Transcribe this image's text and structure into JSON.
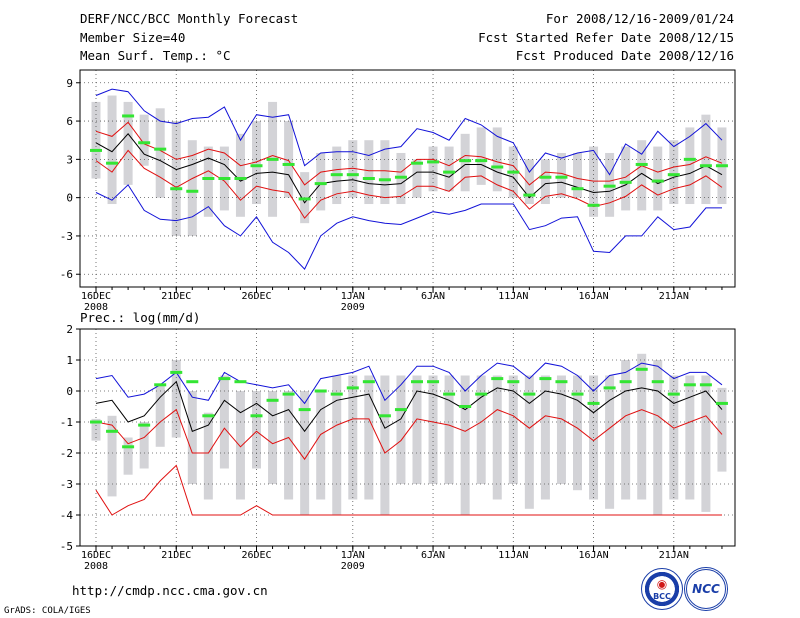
{
  "header": {
    "title": "DERF/NCC/BCC Monthly Forecast",
    "member_size": "Member Size=40",
    "variable": "Mean Surf. Temp.: °C",
    "period": "For 2008/12/16-2009/01/24",
    "refer_date": "Fcst Started Refer Date 2008/12/15",
    "produced_date": "Fcst Produced Date 2008/12/16"
  },
  "footer": {
    "url": "http://cmdp.ncc.cma.gov.cn",
    "credit": "GrADS: COLA/IGES",
    "logo_bcc": "BCC",
    "logo_ncc": "NCC"
  },
  "chart_data": [
    {
      "type": "line",
      "title": "Mean Surf. Temp.: °C",
      "ylim": [
        -7,
        10
      ],
      "yticks": [
        -6,
        -3,
        0,
        3,
        6,
        9
      ],
      "grid": true,
      "x_labels": [
        {
          "day": 0,
          "label": "16DEC",
          "sub": "2008"
        },
        {
          "day": 5,
          "label": "21DEC",
          "sub": ""
        },
        {
          "day": 10,
          "label": "26DEC",
          "sub": ""
        },
        {
          "day": 16,
          "label": "1JAN",
          "sub": "2009"
        },
        {
          "day": 21,
          "label": "6JAN",
          "sub": ""
        },
        {
          "day": 26,
          "label": "11JAN",
          "sub": ""
        },
        {
          "day": 31,
          "label": "16JAN",
          "sub": ""
        },
        {
          "day": 36,
          "label": "21JAN",
          "sub": ""
        }
      ],
      "box_low": [
        1.5,
        -0.5,
        1.0,
        2.5,
        0.0,
        -3.0,
        -3.0,
        -1.5,
        -1.0,
        -1.5,
        -0.5,
        -1.5,
        0.0,
        -2.0,
        -1.0,
        -0.5,
        0.0,
        -0.5,
        -0.5,
        -0.5,
        0.0,
        0.5,
        0.5,
        0.5,
        1.0,
        0.5,
        0.0,
        -0.5,
        -0.5,
        0.0,
        0.0,
        -1.5,
        -1.5,
        -1.0,
        -1.0,
        -1.0,
        -0.5,
        -0.5,
        -0.5,
        -0.5
      ],
      "box_high": [
        7.5,
        8.0,
        7.5,
        6.5,
        7.0,
        6.0,
        4.5,
        4.0,
        4.0,
        5.0,
        6.0,
        7.5,
        6.0,
        2.0,
        3.5,
        4.0,
        4.5,
        4.5,
        4.5,
        3.5,
        3.0,
        4.0,
        4.0,
        5.0,
        5.5,
        5.5,
        4.0,
        3.0,
        3.0,
        3.5,
        3.5,
        4.0,
        3.5,
        4.0,
        4.5,
        4.0,
        4.5,
        5.5,
        6.5,
        5.5
      ],
      "observed": [
        3.7,
        2.7,
        6.4,
        4.3,
        3.8,
        0.7,
        0.5,
        1.5,
        1.5,
        1.5,
        2.5,
        3.0,
        2.6,
        -0.1,
        1.1,
        1.8,
        1.8,
        1.5,
        1.4,
        1.6,
        2.7,
        2.8,
        2.0,
        2.9,
        2.9,
        2.4,
        2.0,
        0.2,
        1.6,
        1.6,
        0.7,
        -0.6,
        0.9,
        1.2,
        2.6,
        1.3,
        1.8,
        3.0,
        2.5,
        2.5
      ],
      "series": [
        {
          "name": "ensemble max",
          "color": "#1212d8",
          "values": [
            0.4,
            -0.2,
            1.0,
            -1.0,
            -1.7,
            -1.8,
            -1.5,
            -0.7,
            -2.2,
            -3.0,
            -1.5,
            -3.5,
            -4.3,
            -5.6,
            -3.0,
            -2.0,
            -1.5,
            -1.8,
            -2.0,
            -2.1,
            -1.6,
            -1.1,
            -1.3,
            -1.0,
            -0.5,
            -0.5,
            -0.5,
            -2.5,
            -2.2,
            -1.6,
            -1.5,
            -4.2,
            -4.3,
            -3.0,
            -3.0,
            -1.5,
            -2.5,
            -2.3,
            -0.8,
            -0.8
          ]
        },
        {
          "name": "ensemble min",
          "color": "#1212d8",
          "values": [
            8.0,
            8.5,
            8.3,
            6.8,
            6.0,
            5.8,
            6.2,
            6.3,
            7.1,
            4.5,
            6.5,
            6.3,
            6.5,
            2.5,
            3.5,
            3.6,
            3.6,
            3.3,
            3.8,
            4.0,
            5.4,
            5.1,
            4.5,
            6.2,
            5.7,
            4.8,
            4.3,
            2.0,
            3.5,
            3.1,
            3.5,
            3.7,
            1.8,
            4.2,
            3.4,
            5.2,
            4.0,
            4.8,
            5.8,
            4.5
          ]
        },
        {
          "name": "mean + 1 std",
          "color": "#e01010",
          "values": [
            5.2,
            4.8,
            5.9,
            4.2,
            3.7,
            3.0,
            3.3,
            3.8,
            3.5,
            2.5,
            2.8,
            3.3,
            2.9,
            1.0,
            2.0,
            2.2,
            2.3,
            2.1,
            2.1,
            2.0,
            3.0,
            3.0,
            2.5,
            3.3,
            3.2,
            2.8,
            2.5,
            1.0,
            2.0,
            1.9,
            1.5,
            1.3,
            1.3,
            1.6,
            2.5,
            2.0,
            2.4,
            2.6,
            3.2,
            2.7
          ]
        },
        {
          "name": "ensemble mean",
          "color": "#000000",
          "values": [
            4.3,
            3.6,
            5.0,
            3.4,
            2.9,
            2.2,
            2.6,
            3.1,
            2.6,
            1.3,
            1.9,
            2.0,
            1.8,
            -0.4,
            1.1,
            1.3,
            1.4,
            1.1,
            1.0,
            1.1,
            2.0,
            2.0,
            1.6,
            2.6,
            2.6,
            2.0,
            1.6,
            0.0,
            1.1,
            1.2,
            0.8,
            0.4,
            0.5,
            1.0,
            1.9,
            1.1,
            1.6,
            1.9,
            2.5,
            1.8
          ]
        },
        {
          "name": "mean - 1 std",
          "color": "#e01010",
          "values": [
            2.9,
            2.0,
            3.7,
            2.3,
            1.6,
            0.8,
            1.5,
            2.1,
            1.3,
            -0.2,
            0.9,
            0.6,
            0.4,
            -1.6,
            -0.2,
            0.3,
            0.5,
            0.2,
            0.0,
            0.1,
            0.9,
            0.9,
            0.5,
            1.6,
            1.7,
            1.0,
            0.5,
            -0.9,
            0.1,
            0.3,
            -0.1,
            -0.7,
            -0.4,
            0.1,
            1.0,
            0.2,
            0.7,
            1.0,
            1.7,
            0.8
          ]
        }
      ]
    },
    {
      "type": "line",
      "title": "Prec.: log(mm/d)",
      "ylim": [
        -5,
        2
      ],
      "yticks": [
        -5,
        -4,
        -3,
        -2,
        -1,
        0,
        1,
        2
      ],
      "grid": true,
      "x_labels": [
        {
          "day": 0,
          "label": "16DEC",
          "sub": "2008"
        },
        {
          "day": 5,
          "label": "21DEC",
          "sub": ""
        },
        {
          "day": 10,
          "label": "26DEC",
          "sub": ""
        },
        {
          "day": 16,
          "label": "1JAN",
          "sub": "2009"
        },
        {
          "day": 21,
          "label": "6JAN",
          "sub": ""
        },
        {
          "day": 26,
          "label": "11JAN",
          "sub": ""
        },
        {
          "day": 31,
          "label": "16JAN",
          "sub": ""
        },
        {
          "day": 36,
          "label": "21JAN",
          "sub": ""
        }
      ],
      "box_low": [
        -1.6,
        -3.4,
        -2.7,
        -2.5,
        -1.8,
        -1.5,
        -3.0,
        -3.5,
        -2.5,
        -3.5,
        -2.5,
        -3.0,
        -3.5,
        -4.0,
        -3.5,
        -4.0,
        -3.5,
        -3.5,
        -4.0,
        -3.0,
        -3.0,
        -3.0,
        -3.0,
        -4.0,
        -3.0,
        -3.5,
        -3.0,
        -3.8,
        -3.5,
        -3.0,
        -3.2,
        -3.5,
        -3.8,
        -3.5,
        -3.5,
        -4.0,
        -3.5,
        -3.5,
        -3.9,
        -2.6
      ],
      "box_high": [
        -0.9,
        -0.8,
        -1.5,
        -1.0,
        0.2,
        1.0,
        0.0,
        -0.7,
        0.5,
        0.0,
        0.0,
        0.0,
        0.0,
        0.0,
        0.0,
        0.5,
        0.5,
        0.5,
        0.5,
        0.5,
        0.5,
        0.5,
        0.5,
        0.5,
        0.5,
        0.5,
        0.5,
        0.5,
        0.5,
        0.5,
        0.5,
        0.5,
        0.5,
        1.0,
        1.2,
        1.0,
        0.5,
        0.5,
        0.5,
        0.1
      ],
      "observed": [
        -1.0,
        -1.3,
        -1.8,
        -1.1,
        0.2,
        0.6,
        0.3,
        -0.8,
        0.4,
        0.3,
        -0.8,
        -0.3,
        -0.1,
        -0.6,
        0.0,
        -0.1,
        0.1,
        0.3,
        -0.8,
        -0.6,
        0.3,
        0.3,
        -0.1,
        -0.5,
        -0.1,
        0.4,
        0.3,
        -0.1,
        0.4,
        0.3,
        -0.1,
        -0.4,
        0.1,
        0.3,
        0.7,
        0.3,
        -0.1,
        0.2,
        0.2,
        -0.4
      ],
      "series": [
        {
          "name": "ensemble max",
          "color": "#1212d8",
          "values": [
            0.4,
            0.5,
            -0.2,
            -0.1,
            0.2,
            0.6,
            -0.2,
            -0.3,
            0.6,
            0.3,
            0.2,
            0.1,
            0.2,
            -0.4,
            0.4,
            0.5,
            0.6,
            0.8,
            -0.3,
            0.2,
            0.8,
            0.8,
            0.6,
            0.0,
            0.5,
            0.9,
            0.8,
            0.4,
            0.9,
            0.8,
            0.5,
            0.0,
            0.5,
            0.6,
            0.9,
            0.8,
            0.4,
            0.6,
            0.6,
            0.2
          ]
        },
        {
          "name": "mean + 1 std",
          "color": "#000000",
          "values": [
            -0.4,
            -0.3,
            -1.0,
            -0.8,
            -0.2,
            0.3,
            -1.3,
            -1.1,
            -0.3,
            -0.7,
            -0.4,
            -0.8,
            -0.6,
            -1.3,
            -0.6,
            -0.3,
            -0.2,
            -0.1,
            -1.2,
            -0.9,
            0.0,
            -0.1,
            -0.3,
            -0.6,
            -0.2,
            0.1,
            0.0,
            -0.4,
            0.0,
            -0.1,
            -0.3,
            -0.7,
            -0.3,
            0.0,
            0.1,
            0.0,
            -0.4,
            -0.2,
            0.0,
            -0.6
          ]
        },
        {
          "name": "mean - 1 std",
          "color": "#e01010",
          "values": [
            -1.0,
            -1.1,
            -1.7,
            -1.5,
            -1.0,
            -0.6,
            -2.0,
            -2.0,
            -1.2,
            -1.8,
            -1.3,
            -1.7,
            -1.5,
            -2.2,
            -1.4,
            -1.1,
            -0.9,
            -0.9,
            -2.0,
            -1.6,
            -0.9,
            -1.0,
            -1.1,
            -1.3,
            -1.0,
            -0.6,
            -0.8,
            -1.2,
            -0.8,
            -0.9,
            -1.2,
            -1.6,
            -1.2,
            -0.8,
            -0.6,
            -0.8,
            -1.2,
            -1.0,
            -0.8,
            -1.4
          ]
        },
        {
          "name": "ensemble min",
          "color": "#e01010",
          "values": [
            -3.2,
            -4.0,
            -3.7,
            -3.5,
            -2.9,
            -2.4,
            -4.0,
            -4.0,
            -4.0,
            -4.0,
            -3.7,
            -4.0,
            -4.0,
            -4.0,
            -4.0,
            -4.0,
            -4.0,
            -4.0,
            -4.0,
            -4.0,
            -4.0,
            -4.0,
            -4.0,
            -4.0,
            -4.0,
            -4.0,
            -4.0,
            -4.0,
            -4.0,
            -4.0,
            -4.0,
            -4.0,
            -4.0,
            -4.0,
            -4.0,
            -4.0,
            -4.0,
            -4.0,
            -4.0,
            -4.0
          ]
        }
      ]
    }
  ]
}
